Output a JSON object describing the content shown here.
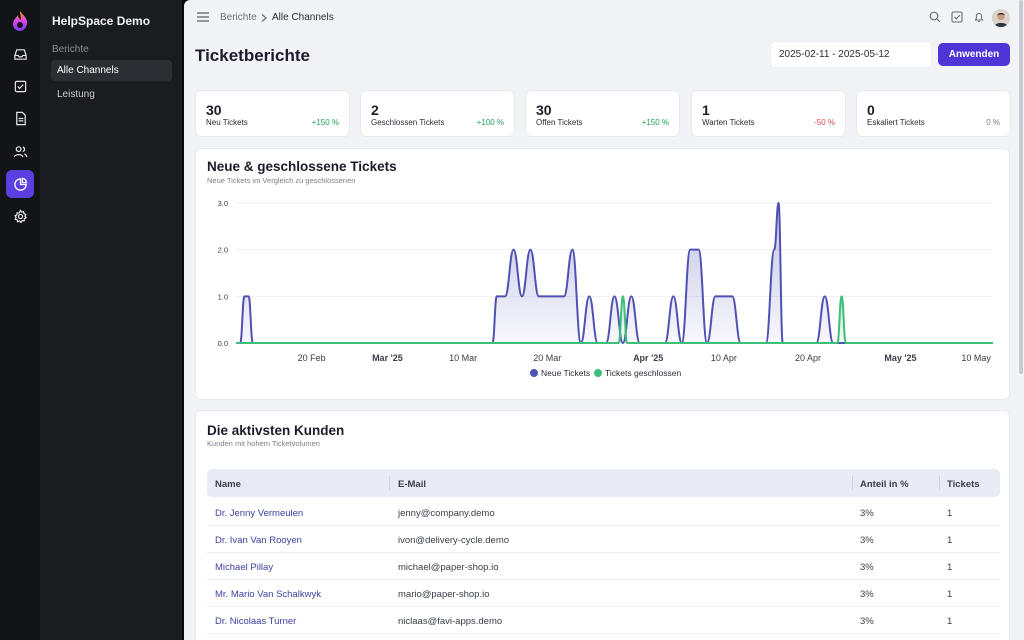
{
  "app": {
    "name": "HelpSpace Demo"
  },
  "nav": {
    "section": "Berichte",
    "items": [
      {
        "label": "Alle Channels"
      },
      {
        "label": "Leistung"
      }
    ]
  },
  "rail": {
    "icons": [
      "logo-icon",
      "inbox-icon",
      "tasks-icon",
      "document-icon",
      "users-icon",
      "reports-icon",
      "settings-icon"
    ]
  },
  "breadcrumb": {
    "parent": "Berichte",
    "current": "Alle Channels"
  },
  "header": {
    "title": "Ticketberichte",
    "date_range": "2025-02-11 - 2025-05-12",
    "apply_label": "Anwenden"
  },
  "stats": [
    {
      "value": "30",
      "label": "Neu Tickets",
      "change": "+150 %",
      "color": "#22a35a"
    },
    {
      "value": "2",
      "label": "Geschlossen Tickets",
      "change": "+100 %",
      "color": "#22a35a"
    },
    {
      "value": "30",
      "label": "Offen Tickets",
      "change": "+150 %",
      "color": "#22a35a"
    },
    {
      "value": "1",
      "label": "Warten Tickets",
      "change": "-50 %",
      "color": "#e5484d"
    },
    {
      "value": "0",
      "label": "Eskaliert Tickets",
      "change": "0 %",
      "color": "#7b7e88"
    }
  ],
  "chart_card": {
    "title": "Neue & geschlossene Tickets",
    "subtitle": "Neue Tickets im Vergleich zu geschlossenen"
  },
  "chart_data": {
    "type": "area",
    "title": "Neue & geschlossene Tickets",
    "subtitle": "Neue Tickets im Vergleich zu geschlossenen",
    "y_ticks": [
      "3.0",
      "2.0",
      "1.0",
      "0.0"
    ],
    "ylim": [
      0,
      3
    ],
    "x_tick_labels": [
      {
        "label": "20 Feb",
        "day": 9,
        "bold": false
      },
      {
        "label": "Mar '25",
        "day": 18,
        "bold": true
      },
      {
        "label": "10 Mar",
        "day": 27,
        "bold": false
      },
      {
        "label": "20 Mar",
        "day": 37,
        "bold": false
      },
      {
        "label": "Apr '25",
        "day": 49,
        "bold": true
      },
      {
        "label": "10 Apr",
        "day": 58,
        "bold": false
      },
      {
        "label": "20 Apr",
        "day": 68,
        "bold": false
      },
      {
        "label": "May '25",
        "day": 79,
        "bold": true
      },
      {
        "label": "10 May",
        "day": 88,
        "bold": false
      }
    ],
    "x_range": [
      0,
      90
    ],
    "grid": true,
    "legend": "bottom",
    "series": [
      {
        "name": "Neue Tickets",
        "color": "#4f52b3",
        "points": [
          [
            0,
            0
          ],
          [
            0.5,
            0
          ],
          [
            1,
            1
          ],
          [
            1.5,
            1
          ],
          [
            2,
            0
          ],
          [
            30.5,
            0
          ],
          [
            31,
            1
          ],
          [
            32,
            1
          ],
          [
            33,
            2
          ],
          [
            34,
            1
          ],
          [
            35,
            2
          ],
          [
            36,
            1
          ],
          [
            39,
            1
          ],
          [
            40,
            2
          ],
          [
            41,
            0
          ],
          [
            42,
            1
          ],
          [
            43,
            0
          ],
          [
            44,
            0
          ],
          [
            45,
            1
          ],
          [
            46,
            0
          ],
          [
            47,
            1
          ],
          [
            48,
            0
          ],
          [
            51,
            0
          ],
          [
            52,
            1
          ],
          [
            53,
            0
          ],
          [
            54,
            2
          ],
          [
            55,
            2
          ],
          [
            56,
            0
          ],
          [
            57,
            1
          ],
          [
            59,
            1
          ],
          [
            60,
            0
          ],
          [
            63,
            0
          ],
          [
            64,
            2
          ],
          [
            64.5,
            3
          ],
          [
            65,
            0
          ],
          [
            69,
            0
          ],
          [
            70,
            1
          ],
          [
            71,
            0
          ],
          [
            90,
            0
          ]
        ]
      },
      {
        "name": "Tickets geschlossen",
        "color": "#3ebf78",
        "points": [
          [
            0,
            0
          ],
          [
            45.5,
            0
          ],
          [
            46,
            1
          ],
          [
            46.5,
            0
          ],
          [
            71.5,
            0
          ],
          [
            72,
            1
          ],
          [
            72.5,
            0
          ],
          [
            90,
            0
          ]
        ]
      }
    ]
  },
  "customers": {
    "title": "Die aktivsten Kunden",
    "subtitle": "Kunden mit hohem Ticketvolumen",
    "columns": [
      "Name",
      "E-Mail",
      "Anteil in %",
      "Tickets"
    ],
    "rows": [
      {
        "name": "Dr. Jenny Vermeulen",
        "email": "jenny@company.demo",
        "share": "3%",
        "tickets": "1"
      },
      {
        "name": "Dr. Ivan Van Rooyen",
        "email": "ivon@delivery-cycle.demo",
        "share": "3%",
        "tickets": "1"
      },
      {
        "name": "Michael Pillay",
        "email": "michael@paper-shop.io",
        "share": "3%",
        "tickets": "1"
      },
      {
        "name": "Mr. Mario Van Schalkwyk",
        "email": "mario@paper-shop.io",
        "share": "3%",
        "tickets": "1"
      },
      {
        "name": "Dr. Nicolaas Turner",
        "email": "niclaas@favi-apps.demo",
        "share": "3%",
        "tickets": "1"
      }
    ]
  },
  "colors": {
    "accent": "#4f35d6",
    "new_series": "#4f52b3",
    "closed_series": "#3ebf78"
  }
}
